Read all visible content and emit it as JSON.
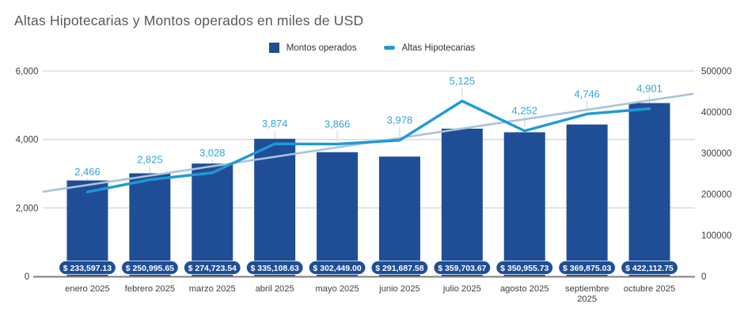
{
  "title": "Altas Hipotecarias y Montos operados en miles de USD",
  "legend": [
    {
      "label": "Montos operados",
      "swatch": "square"
    },
    {
      "label": "Altas Hipotecarias",
      "swatch": "dash"
    }
  ],
  "colors": {
    "background": "#FFFFFF",
    "bar": "#1F4E96",
    "line": "#1E9AD6",
    "line_label": "#31A5DD",
    "trend": "#A9C3DA",
    "grid": "#D9D9D9",
    "axis_line": "#7F7F7F",
    "title": "#595959",
    "tick": "#3F3F3F",
    "legend_text": "#333333",
    "leader": "#C9CDD1",
    "pill_text": "#FFFFFF"
  },
  "chart_data": {
    "type": "combo-bar-line",
    "title": "Altas Hipotecarias y Montos operados en miles de USD",
    "legend_position": "top-center",
    "grid": "horizontal-only",
    "categories": [
      "enero 2025",
      "febrero 2025",
      "marzo 2025",
      "abril 2025",
      "mayo 2025",
      "junio 2025",
      "julio 2025",
      "agosto 2025",
      "septiembre 2025",
      "octubre 2025"
    ],
    "series": [
      {
        "name": "Montos operados",
        "type": "bar",
        "axis": "right",
        "values": [
          233597.13,
          250995.65,
          274723.54,
          335108.63,
          302449.0,
          291687.58,
          359703.67,
          350955.73,
          369875.03,
          422112.75
        ],
        "labels": [
          "$ 233,597.13",
          "$ 250,995.65",
          "$ 274,723.54",
          "$ 335,108.63",
          "$ 302,449.00",
          "$ 291,687.58",
          "$ 359,703.67",
          "$ 350,955.73",
          "$ 369,875.03",
          "$ 422,112.75"
        ]
      },
      {
        "name": "Altas Hipotecarias",
        "type": "line",
        "axis": "left",
        "values": [
          2466,
          2825,
          3028,
          3874,
          3866,
          3978,
          5125,
          4252,
          4746,
          4901
        ],
        "labels": [
          "2,466",
          "2,825",
          "3,028",
          "3,874",
          "3,866",
          "3,978",
          "5,125",
          "4,252",
          "4,746",
          "4,901"
        ],
        "trendline": "linear"
      }
    ],
    "left_axis": {
      "range": [
        0,
        6000
      ],
      "ticks": [
        "0",
        "2,000",
        "4,000",
        "6,000"
      ],
      "tick_values": [
        0,
        2000,
        4000,
        6000
      ]
    },
    "right_axis": {
      "range": [
        0,
        500000
      ],
      "ticks": [
        "0",
        "100000",
        "200000",
        "300000",
        "400000",
        "500000"
      ],
      "tick_values": [
        0,
        100000,
        200000,
        300000,
        400000,
        500000
      ]
    }
  }
}
